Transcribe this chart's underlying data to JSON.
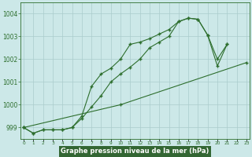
{
  "title": "Graphe pression niveau de la mer (hPa)",
  "x_values": [
    0,
    1,
    2,
    3,
    4,
    5,
    6,
    7,
    8,
    9,
    10,
    11,
    12,
    13,
    14,
    15,
    16,
    17,
    18,
    19,
    20,
    21,
    22,
    23
  ],
  "line1": [
    999.0,
    998.75,
    998.9,
    998.9,
    998.9,
    999.0,
    999.5,
    1000.8,
    1001.35,
    1001.6,
    1002.0,
    1002.65,
    1002.75,
    1002.9,
    1003.1,
    1003.3,
    1003.65,
    1003.8,
    1003.75,
    1003.05,
    1002.0,
    1002.65,
    null,
    null
  ],
  "line2": [
    999.0,
    998.75,
    998.9,
    998.9,
    998.9,
    999.0,
    999.4,
    999.9,
    1000.4,
    1001.0,
    1001.35,
    1001.65,
    1002.0,
    1002.5,
    1002.75,
    1003.0,
    1003.65,
    1003.8,
    1003.75,
    1003.05,
    1001.7,
    1002.65,
    null,
    null
  ],
  "line3": [
    999.0,
    null,
    null,
    null,
    null,
    null,
    null,
    null,
    null,
    null,
    1000.0,
    null,
    null,
    null,
    null,
    null,
    null,
    null,
    null,
    null,
    null,
    null,
    null,
    1001.85
  ],
  "ylim": [
    998.5,
    1004.5
  ],
  "yticks": [
    999,
    1000,
    1001,
    1002,
    1003,
    1004
  ],
  "line_color": "#2d6e2d",
  "bg_color": "#cce8e8",
  "title_bg": "#336633",
  "title_color": "#ffffff",
  "grid_color": "#aacccc",
  "figsize": [
    3.2,
    2.0
  ],
  "dpi": 100
}
